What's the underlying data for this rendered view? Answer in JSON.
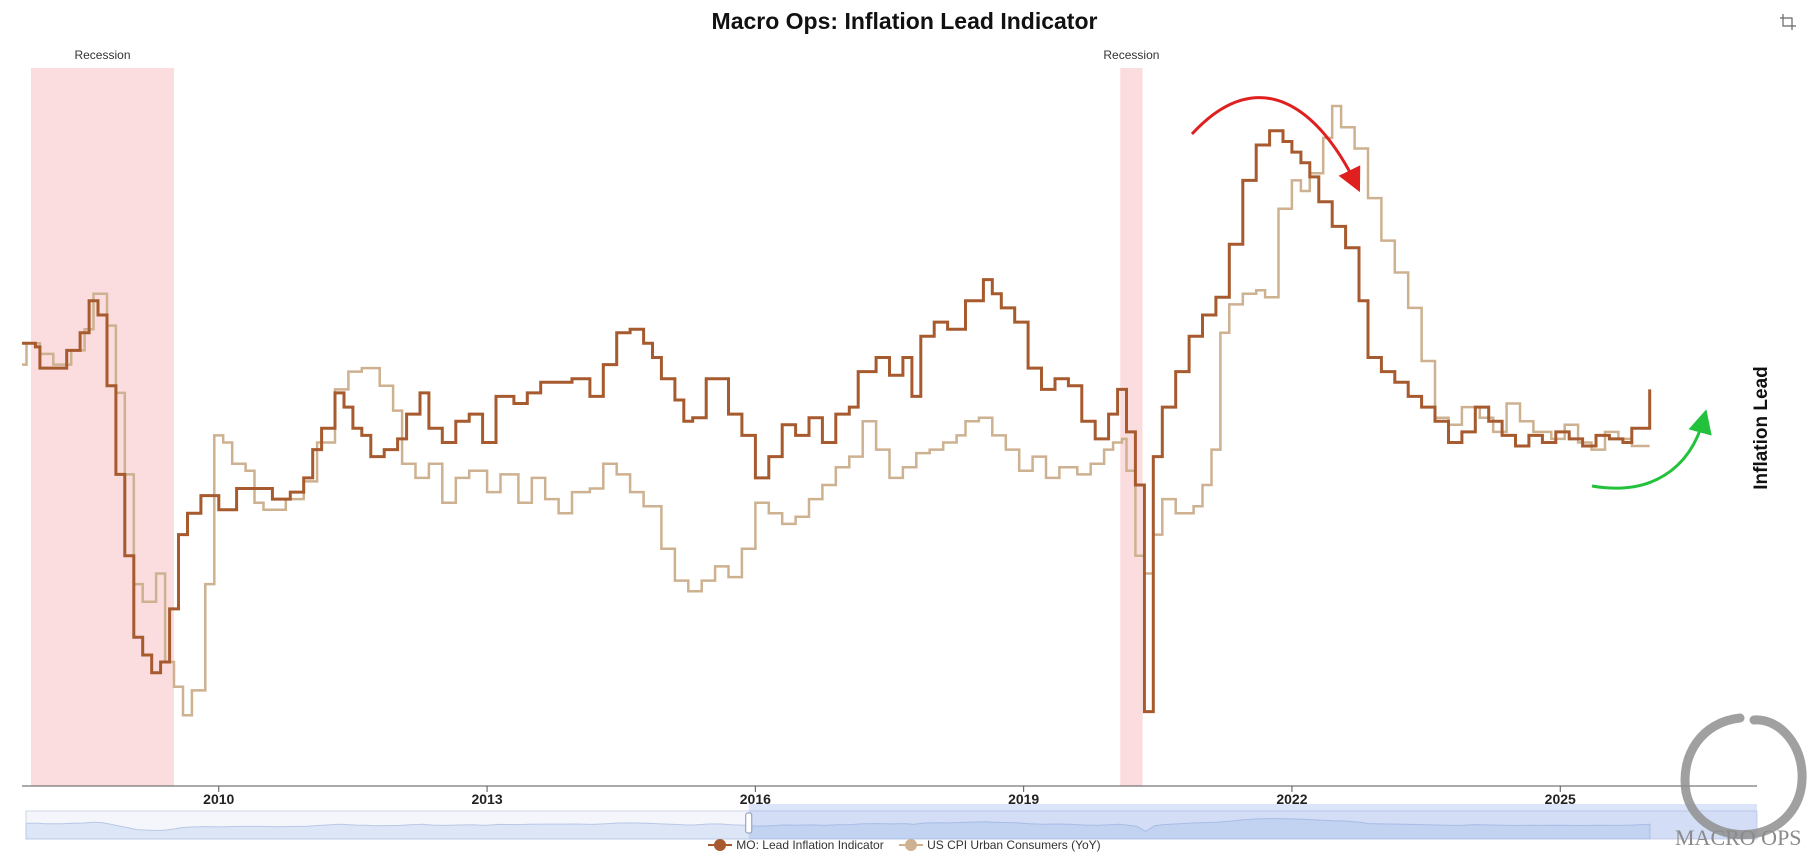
{
  "chart_data": {
    "type": "line",
    "title": "Macro Ops: Inflation Lead Indicator",
    "ylabel": "Inflation Lead",
    "xlabel": "",
    "x_range": [
      2007.8,
      2027.2
    ],
    "y_range": [
      -11.3,
      9.2
    ],
    "x_ticks": [
      2010,
      2013,
      2016,
      2019,
      2022,
      2025
    ],
    "x_tick_labels": [
      "2010",
      "2013",
      "2016",
      "2019",
      "2022",
      "2025"
    ],
    "recessions": [
      {
        "label": "Recession",
        "start": 2007.9,
        "end": 2009.5
      },
      {
        "label": "Recession",
        "start": 2020.08,
        "end": 2020.33
      }
    ],
    "series": [
      {
        "name": "MO: Lead Inflation Indicator",
        "color": "#a65a2e",
        "width": 3,
        "points": [
          [
            2007.8,
            1.2
          ],
          [
            2007.95,
            1.1
          ],
          [
            2008.0,
            0.5
          ],
          [
            2008.2,
            0.5
          ],
          [
            2008.3,
            1.0
          ],
          [
            2008.45,
            1.5
          ],
          [
            2008.55,
            2.4
          ],
          [
            2008.65,
            2.0
          ],
          [
            2008.75,
            0.0
          ],
          [
            2008.85,
            -2.5
          ],
          [
            2008.95,
            -4.8
          ],
          [
            2009.05,
            -7.1
          ],
          [
            2009.15,
            -7.6
          ],
          [
            2009.25,
            -8.1
          ],
          [
            2009.35,
            -7.8
          ],
          [
            2009.45,
            -6.3
          ],
          [
            2009.55,
            -4.2
          ],
          [
            2009.65,
            -3.6
          ],
          [
            2009.8,
            -3.1
          ],
          [
            2010.0,
            -3.5
          ],
          [
            2010.2,
            -2.9
          ],
          [
            2010.4,
            -2.9
          ],
          [
            2010.6,
            -3.2
          ],
          [
            2010.8,
            -3.0
          ],
          [
            2010.95,
            -2.6
          ],
          [
            2011.05,
            -1.8
          ],
          [
            2011.15,
            -1.2
          ],
          [
            2011.3,
            -0.2
          ],
          [
            2011.4,
            -0.6
          ],
          [
            2011.5,
            -1.2
          ],
          [
            2011.6,
            -1.4
          ],
          [
            2011.7,
            -2.0
          ],
          [
            2011.85,
            -1.8
          ],
          [
            2012.0,
            -1.5
          ],
          [
            2012.1,
            -0.8
          ],
          [
            2012.25,
            -0.2
          ],
          [
            2012.35,
            -1.2
          ],
          [
            2012.5,
            -1.6
          ],
          [
            2012.65,
            -1.0
          ],
          [
            2012.8,
            -0.8
          ],
          [
            2012.95,
            -1.6
          ],
          [
            2013.1,
            -0.3
          ],
          [
            2013.3,
            -0.5
          ],
          [
            2013.45,
            -0.2
          ],
          [
            2013.6,
            0.1
          ],
          [
            2013.8,
            0.1
          ],
          [
            2013.95,
            0.2
          ],
          [
            2014.15,
            -0.3
          ],
          [
            2014.3,
            0.6
          ],
          [
            2014.45,
            1.5
          ],
          [
            2014.6,
            1.6
          ],
          [
            2014.75,
            1.2
          ],
          [
            2014.85,
            0.8
          ],
          [
            2014.95,
            0.2
          ],
          [
            2015.1,
            -0.4
          ],
          [
            2015.2,
            -1.0
          ],
          [
            2015.3,
            -0.9
          ],
          [
            2015.45,
            0.2
          ],
          [
            2015.6,
            0.2
          ],
          [
            2015.7,
            -0.8
          ],
          [
            2015.85,
            -1.4
          ],
          [
            2016.0,
            -2.6
          ],
          [
            2016.15,
            -2.0
          ],
          [
            2016.3,
            -1.1
          ],
          [
            2016.45,
            -1.4
          ],
          [
            2016.6,
            -0.9
          ],
          [
            2016.75,
            -1.6
          ],
          [
            2016.9,
            -0.8
          ],
          [
            2017.05,
            -0.6
          ],
          [
            2017.15,
            0.4
          ],
          [
            2017.35,
            0.8
          ],
          [
            2017.5,
            0.3
          ],
          [
            2017.65,
            0.8
          ],
          [
            2017.75,
            -0.3
          ],
          [
            2017.85,
            1.4
          ],
          [
            2018.0,
            1.8
          ],
          [
            2018.15,
            1.6
          ],
          [
            2018.35,
            2.4
          ],
          [
            2018.55,
            3.0
          ],
          [
            2018.65,
            2.6
          ],
          [
            2018.75,
            2.2
          ],
          [
            2018.9,
            1.8
          ],
          [
            2019.05,
            0.5
          ],
          [
            2019.2,
            -0.1
          ],
          [
            2019.35,
            0.2
          ],
          [
            2019.5,
            0.0
          ],
          [
            2019.65,
            -1.0
          ],
          [
            2019.8,
            -1.5
          ],
          [
            2019.95,
            -0.8
          ],
          [
            2020.05,
            -0.1
          ],
          [
            2020.15,
            -1.3
          ],
          [
            2020.25,
            -2.8
          ],
          [
            2020.35,
            -9.2
          ],
          [
            2020.45,
            -2.0
          ],
          [
            2020.55,
            -0.6
          ],
          [
            2020.7,
            0.4
          ],
          [
            2020.85,
            1.4
          ],
          [
            2021.0,
            2.0
          ],
          [
            2021.15,
            2.5
          ],
          [
            2021.3,
            4.0
          ],
          [
            2021.45,
            5.8
          ],
          [
            2021.6,
            6.8
          ],
          [
            2021.75,
            7.2
          ],
          [
            2021.9,
            6.9
          ],
          [
            2022.0,
            6.6
          ],
          [
            2022.1,
            6.3
          ],
          [
            2022.2,
            5.9
          ],
          [
            2022.3,
            5.2
          ],
          [
            2022.45,
            4.5
          ],
          [
            2022.6,
            3.9
          ],
          [
            2022.75,
            2.4
          ],
          [
            2022.85,
            0.8
          ],
          [
            2023.0,
            0.4
          ],
          [
            2023.15,
            0.1
          ],
          [
            2023.3,
            -0.3
          ],
          [
            2023.45,
            -0.6
          ],
          [
            2023.6,
            -1.0
          ],
          [
            2023.75,
            -1.6
          ],
          [
            2023.9,
            -1.3
          ],
          [
            2024.05,
            -0.6
          ],
          [
            2024.2,
            -1.0
          ],
          [
            2024.35,
            -1.4
          ],
          [
            2024.5,
            -1.7
          ],
          [
            2024.65,
            -1.4
          ],
          [
            2024.8,
            -1.6
          ],
          [
            2024.95,
            -1.3
          ],
          [
            2025.1,
            -1.5
          ],
          [
            2025.25,
            -1.7
          ],
          [
            2025.4,
            -1.4
          ],
          [
            2025.55,
            -1.5
          ],
          [
            2025.7,
            -1.6
          ],
          [
            2025.8,
            -1.2
          ],
          [
            2026.0,
            -0.1
          ]
        ]
      },
      {
        "name": "US CPI Urban Consumers (YoY)",
        "color": "#cdb190",
        "width": 2.5,
        "points": [
          [
            2007.8,
            0.6
          ],
          [
            2007.85,
            1.2
          ],
          [
            2008.0,
            0.9
          ],
          [
            2008.15,
            0.6
          ],
          [
            2008.35,
            1.0
          ],
          [
            2008.5,
            1.6
          ],
          [
            2008.6,
            2.6
          ],
          [
            2008.75,
            1.7
          ],
          [
            2008.85,
            -0.2
          ],
          [
            2008.95,
            -2.5
          ],
          [
            2009.05,
            -5.6
          ],
          [
            2009.15,
            -6.1
          ],
          [
            2009.3,
            -5.3
          ],
          [
            2009.4,
            -7.8
          ],
          [
            2009.5,
            -8.5
          ],
          [
            2009.6,
            -9.3
          ],
          [
            2009.7,
            -8.6
          ],
          [
            2009.85,
            -5.6
          ],
          [
            2009.95,
            -1.4
          ],
          [
            2010.05,
            -1.6
          ],
          [
            2010.15,
            -2.2
          ],
          [
            2010.3,
            -2.4
          ],
          [
            2010.4,
            -3.3
          ],
          [
            2010.5,
            -3.5
          ],
          [
            2010.75,
            -3.2
          ],
          [
            2010.95,
            -2.7
          ],
          [
            2011.1,
            -1.6
          ],
          [
            2011.3,
            -0.1
          ],
          [
            2011.45,
            0.4
          ],
          [
            2011.6,
            0.5
          ],
          [
            2011.8,
            0.0
          ],
          [
            2011.95,
            -0.7
          ],
          [
            2012.05,
            -2.2
          ],
          [
            2012.2,
            -2.6
          ],
          [
            2012.35,
            -2.2
          ],
          [
            2012.5,
            -3.3
          ],
          [
            2012.65,
            -2.6
          ],
          [
            2012.8,
            -2.4
          ],
          [
            2013.0,
            -3.0
          ],
          [
            2013.15,
            -2.5
          ],
          [
            2013.35,
            -3.3
          ],
          [
            2013.5,
            -2.6
          ],
          [
            2013.65,
            -3.2
          ],
          [
            2013.8,
            -3.6
          ],
          [
            2013.95,
            -3.0
          ],
          [
            2014.15,
            -2.9
          ],
          [
            2014.3,
            -2.2
          ],
          [
            2014.45,
            -2.5
          ],
          [
            2014.6,
            -3.0
          ],
          [
            2014.75,
            -3.4
          ],
          [
            2014.95,
            -4.6
          ],
          [
            2015.1,
            -5.5
          ],
          [
            2015.25,
            -5.8
          ],
          [
            2015.4,
            -5.5
          ],
          [
            2015.55,
            -5.1
          ],
          [
            2015.7,
            -5.4
          ],
          [
            2015.85,
            -4.6
          ],
          [
            2016.0,
            -3.3
          ],
          [
            2016.15,
            -3.6
          ],
          [
            2016.3,
            -3.9
          ],
          [
            2016.45,
            -3.7
          ],
          [
            2016.6,
            -3.2
          ],
          [
            2016.75,
            -2.8
          ],
          [
            2016.9,
            -2.3
          ],
          [
            2017.05,
            -2.0
          ],
          [
            2017.2,
            -1.0
          ],
          [
            2017.35,
            -1.8
          ],
          [
            2017.5,
            -2.6
          ],
          [
            2017.65,
            -2.3
          ],
          [
            2017.8,
            -1.9
          ],
          [
            2017.95,
            -1.8
          ],
          [
            2018.1,
            -1.6
          ],
          [
            2018.25,
            -1.4
          ],
          [
            2018.35,
            -1.0
          ],
          [
            2018.5,
            -0.9
          ],
          [
            2018.65,
            -1.4
          ],
          [
            2018.8,
            -1.8
          ],
          [
            2018.95,
            -2.4
          ],
          [
            2019.1,
            -2.0
          ],
          [
            2019.25,
            -2.6
          ],
          [
            2019.4,
            -2.3
          ],
          [
            2019.6,
            -2.5
          ],
          [
            2019.75,
            -2.2
          ],
          [
            2019.9,
            -1.8
          ],
          [
            2020.0,
            -1.6
          ],
          [
            2020.1,
            -1.5
          ],
          [
            2020.15,
            -2.4
          ],
          [
            2020.25,
            -4.8
          ],
          [
            2020.35,
            -5.3
          ],
          [
            2020.45,
            -4.2
          ],
          [
            2020.55,
            -3.2
          ],
          [
            2020.7,
            -3.6
          ],
          [
            2020.9,
            -3.4
          ],
          [
            2021.0,
            -2.8
          ],
          [
            2021.1,
            -1.8
          ],
          [
            2021.2,
            1.5
          ],
          [
            2021.3,
            2.3
          ],
          [
            2021.45,
            2.6
          ],
          [
            2021.6,
            2.7
          ],
          [
            2021.7,
            2.5
          ],
          [
            2021.85,
            5.0
          ],
          [
            2022.0,
            5.8
          ],
          [
            2022.1,
            5.5
          ],
          [
            2022.2,
            6.0
          ],
          [
            2022.35,
            7.0
          ],
          [
            2022.45,
            7.9
          ],
          [
            2022.55,
            7.3
          ],
          [
            2022.7,
            6.7
          ],
          [
            2022.85,
            5.3
          ],
          [
            2023.0,
            4.1
          ],
          [
            2023.15,
            3.2
          ],
          [
            2023.3,
            2.2
          ],
          [
            2023.45,
            0.7
          ],
          [
            2023.6,
            -0.9
          ],
          [
            2023.75,
            -1.1
          ],
          [
            2023.9,
            -0.6
          ],
          [
            2024.1,
            -0.9
          ],
          [
            2024.25,
            -1.3
          ],
          [
            2024.4,
            -0.5
          ],
          [
            2024.55,
            -1.0
          ],
          [
            2024.7,
            -1.3
          ],
          [
            2024.9,
            -1.5
          ],
          [
            2025.05,
            -1.1
          ],
          [
            2025.2,
            -1.6
          ],
          [
            2025.35,
            -1.8
          ],
          [
            2025.5,
            -1.3
          ],
          [
            2025.65,
            -1.5
          ],
          [
            2025.8,
            -1.7
          ],
          [
            2026.0,
            -1.7
          ]
        ]
      }
    ],
    "annotations": [
      {
        "type": "arrow",
        "color": "#e01f1f",
        "direction": "down",
        "near_x": 2022.0
      },
      {
        "type": "arrow",
        "color": "#22c23c",
        "direction": "up",
        "near_x": 2025.9
      }
    ]
  },
  "legend": [
    {
      "label": "MO: Lead Inflation Indicator",
      "color": "#a65a2e"
    },
    {
      "label": "US CPI Urban Consumers (YoY)",
      "color": "#cdb190"
    }
  ],
  "navigator": {
    "selection_start": 2015.9,
    "selection_end": 2027.2
  },
  "watermark": {
    "text": "MACRO OPS"
  }
}
